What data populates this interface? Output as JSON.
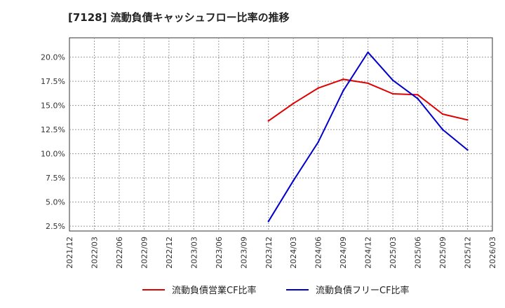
{
  "chart_data": {
    "type": "line",
    "title": "[7128]  流動負債キャッシュフロー比率の推移",
    "xlabel": "",
    "ylabel": "",
    "x_ticks": [
      "2021/12",
      "2022/03",
      "2022/06",
      "2022/09",
      "2022/12",
      "2023/03",
      "2023/06",
      "2023/09",
      "2023/12",
      "2024/03",
      "2024/06",
      "2024/09",
      "2024/12",
      "2025/03",
      "2025/06",
      "2025/09",
      "2025/12",
      "2026/03"
    ],
    "y_ticks": [
      "2.5%",
      "5.0%",
      "7.5%",
      "10.0%",
      "12.5%",
      "15.0%",
      "17.5%",
      "20.0%"
    ],
    "y_tick_values": [
      2.5,
      5.0,
      7.5,
      10.0,
      12.5,
      15.0,
      17.5,
      20.0
    ],
    "ylim": [
      2.0,
      22.0
    ],
    "grid": true,
    "legend_position": "bottom",
    "series": [
      {
        "name": "流動負債営業CF比率",
        "color": "#e00000",
        "x": [
          "2023/12",
          "2024/03",
          "2024/06",
          "2024/09",
          "2024/12",
          "2025/03",
          "2025/06",
          "2025/09",
          "2025/12"
        ],
        "values": [
          13.4,
          15.2,
          16.8,
          17.7,
          17.3,
          16.2,
          16.1,
          14.1,
          13.5
        ]
      },
      {
        "name": "流動負債フリーCF比率",
        "color": "#0000cc",
        "x": [
          "2023/12",
          "2024/03",
          "2024/06",
          "2024/09",
          "2024/12",
          "2025/03",
          "2025/06",
          "2025/09",
          "2025/12"
        ],
        "values": [
          3.0,
          7.2,
          11.2,
          16.5,
          20.5,
          17.6,
          15.7,
          12.5,
          10.4
        ]
      }
    ]
  }
}
